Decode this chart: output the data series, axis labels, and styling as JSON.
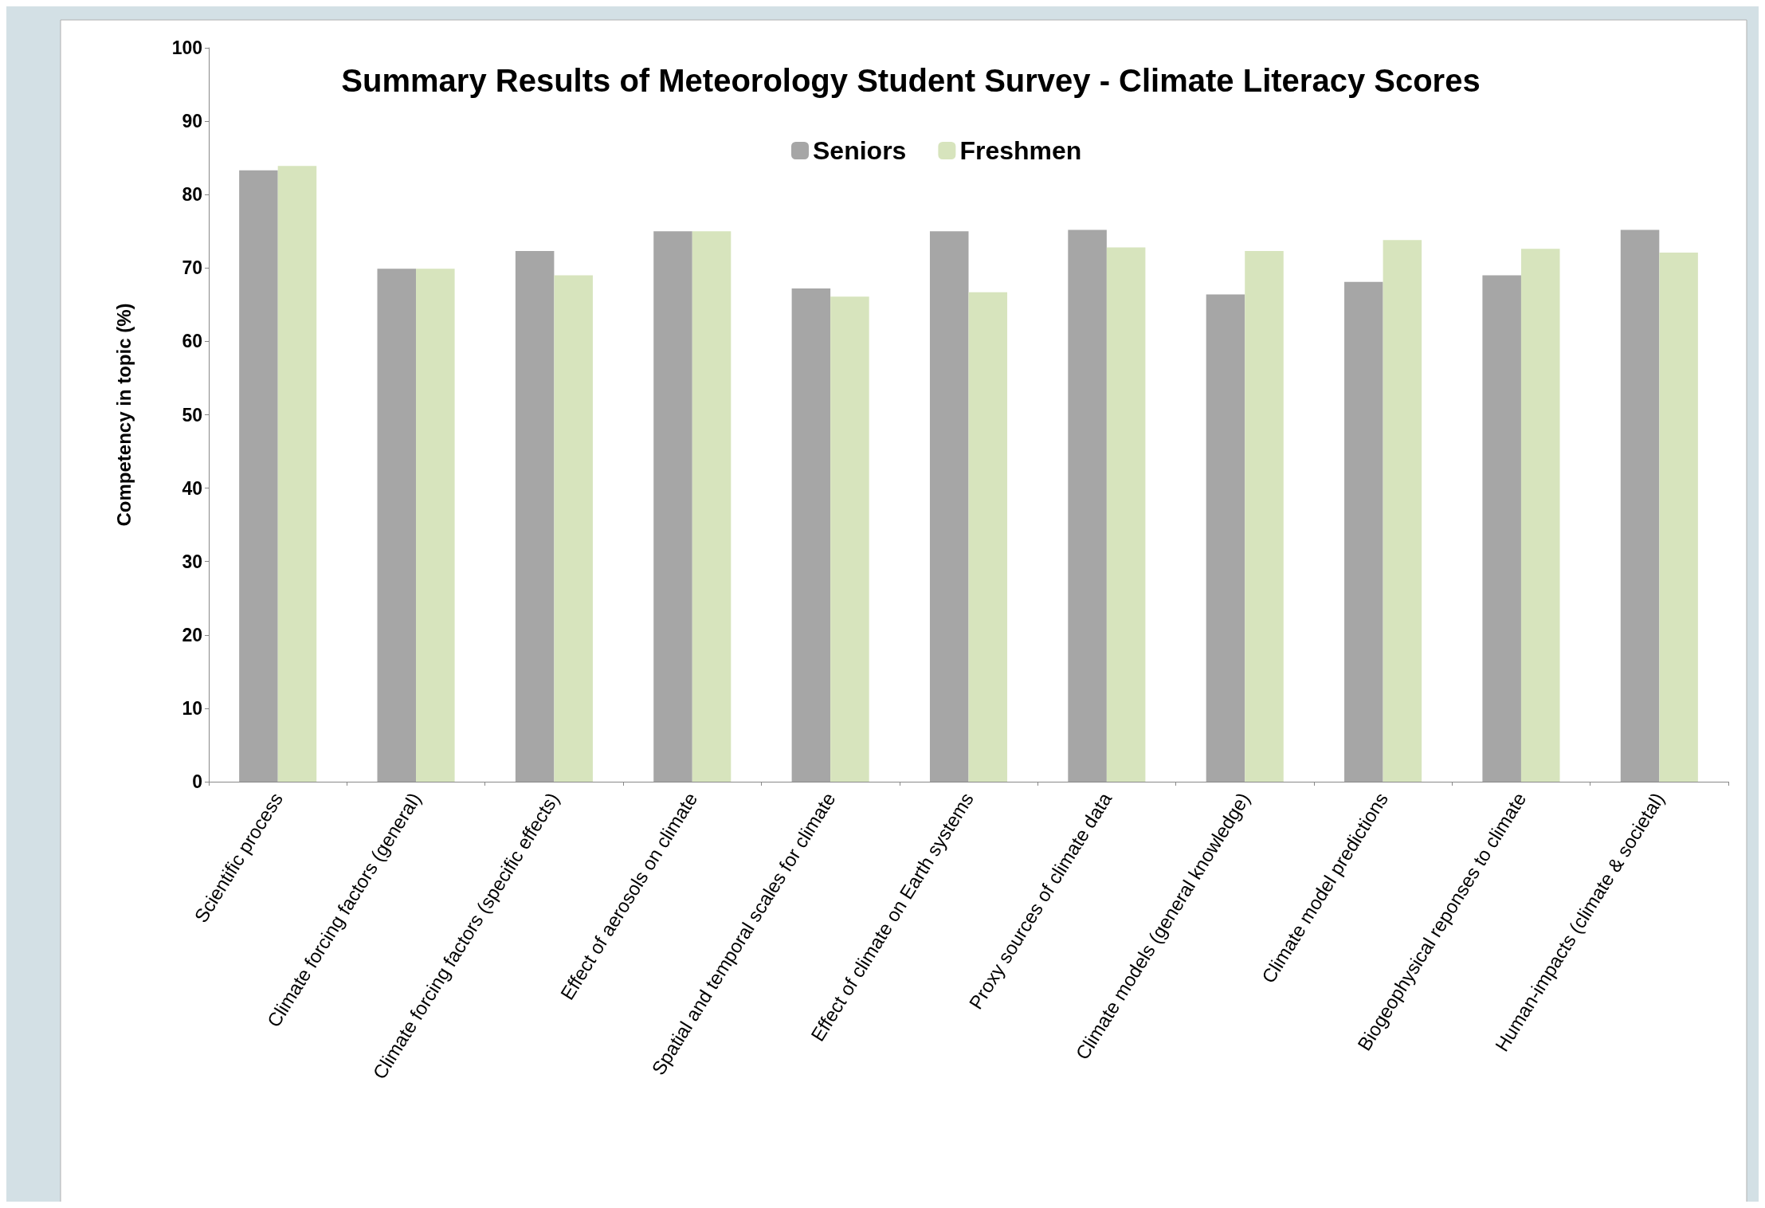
{
  "chart_data": {
    "type": "bar",
    "title": "Summary Results of Meteorology Student Survey - Climate Literacy Scores",
    "ylabel": "Competency in topic (%)",
    "categories": [
      "Scientific process",
      "Climate forcing factors (general)",
      "Climate forcing factors (specific effects)",
      "Effect of aerosols on climate",
      "Spatial and temporal scales for climate",
      "Effect of climate on Earth systems",
      "Proxy sources of climate data",
      "Climate models (general knowledge)",
      "Climate model predictions",
      "Biogeophysical reponses to climate",
      "Human-impacts (climate & societal)"
    ],
    "series": [
      {
        "name": "Seniors",
        "color": "#a6a6a6",
        "values": [
          83.3,
          69.9,
          72.3,
          75,
          67.2,
          75,
          75.2,
          66.4,
          68.1,
          69,
          75.2
        ]
      },
      {
        "name": "Freshmen",
        "color": "#d7e4bd",
        "values": [
          83.9,
          69.9,
          69,
          75,
          66.1,
          66.7,
          72.8,
          72.3,
          73.8,
          72.6,
          72.1
        ]
      }
    ],
    "ylim": [
      0,
      100
    ],
    "yticks": [
      0,
      10,
      20,
      30,
      40,
      50,
      60,
      70,
      80,
      90,
      100
    ],
    "grid": false,
    "legend": "top"
  }
}
